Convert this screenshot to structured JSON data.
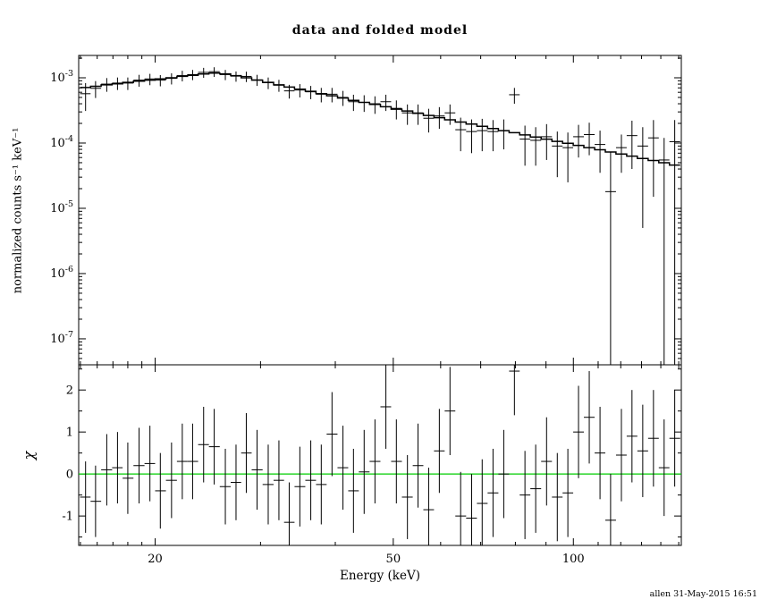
{
  "window": {
    "signature": "allen 31-May-2015 16:51"
  },
  "chart_data": {
    "type": "scatter",
    "subtype": "xspec spectrum with folded model (top) and chi residuals (bottom), error-bar crosses",
    "title": "data and folded model",
    "xlabel": "Energy (keV)",
    "xscale": "log",
    "xlim": [
      14.9,
      151.5
    ],
    "x_major_ticks": [
      20,
      50,
      100
    ],
    "x_minor_ticks": [
      15,
      16,
      17,
      18,
      19,
      30,
      40,
      60,
      70,
      80,
      90,
      110,
      120,
      130,
      140,
      150
    ],
    "panels": [
      {
        "name": "spectrum",
        "ylabel": "normalized counts s⁻¹ keV⁻¹",
        "yscale": "log",
        "ylim": [
          4e-08,
          0.0022
        ],
        "y_major_ticks": [
          0.001,
          0.0001,
          1e-05,
          1e-06,
          1e-07
        ]
      },
      {
        "name": "residuals",
        "ylabel": "χ",
        "yscale": "linear",
        "ylim": [
          -1.7,
          2.6
        ],
        "y_major_ticks": [
          -1,
          0,
          1,
          2
        ],
        "zero_line_color": "#00cc00"
      }
    ],
    "series": [
      {
        "name": "data",
        "style": "cross-error-bars",
        "color": "#000000"
      },
      {
        "name": "folded model",
        "style": "step-line",
        "color": "#000000"
      }
    ],
    "energy_kev": [
      15.3,
      15.9,
      16.6,
      17.3,
      18.0,
      18.8,
      19.6,
      20.4,
      21.3,
      22.2,
      23.1,
      24.1,
      25.1,
      26.2,
      27.3,
      28.4,
      29.6,
      30.9,
      32.2,
      33.5,
      34.9,
      36.4,
      37.9,
      39.5,
      41.2,
      42.9,
      44.7,
      46.6,
      48.6,
      50.6,
      52.8,
      55.0,
      57.3,
      59.7,
      62.2,
      64.8,
      67.6,
      70.4,
      73.4,
      76.5,
      79.7,
      83.0,
      86.5,
      90.2,
      94.0,
      97.9,
      102.0,
      106.3,
      110.8,
      115.4,
      120.3,
      125.3,
      130.6,
      136.1,
      141.8,
      147.7
    ],
    "counts": [
      0.00057,
      0.00069,
      0.0008,
      0.00083,
      0.00083,
      0.00092,
      0.00096,
      0.00092,
      0.00098,
      0.00108,
      0.00112,
      0.00121,
      0.00124,
      0.00112,
      0.00106,
      0.00105,
      0.00093,
      0.00084,
      0.00077,
      0.00063,
      0.00065,
      0.00061,
      0.00056,
      0.00056,
      0.0005,
      0.00043,
      0.00042,
      0.0004,
      0.00043,
      0.00034,
      0.00029,
      0.00029,
      0.00024,
      0.00026,
      0.00029,
      0.00016,
      0.00015,
      0.000155,
      0.00015,
      0.000155,
      0.00055,
      0.000115,
      0.00011,
      0.000125,
      9e-05,
      8.5e-05,
      0.000125,
      0.000135,
      9.5e-05,
      1.8e-05,
      8.5e-05,
      0.00013,
      9e-05,
      0.00012,
      5.5e-05,
      0.000105
    ],
    "counts_err": [
      0.00026,
      0.0002,
      0.00019,
      0.00018,
      0.00018,
      0.00019,
      0.00019,
      0.00018,
      0.00019,
      0.0002,
      0.0002,
      0.00021,
      0.00021,
      0.0002,
      0.00019,
      0.00019,
      0.00018,
      0.00017,
      0.00016,
      0.00015,
      0.00015,
      0.00014,
      0.00014,
      0.00014,
      0.00013,
      0.00012,
      0.00012,
      0.00012,
      0.00012,
      0.00011,
      0.0001,
      0.0001,
      9.5e-05,
      9.5e-05,
      0.0001,
      8.5e-05,
      8e-05,
      8e-05,
      7.5e-05,
      7.5e-05,
      0.00015,
      7e-05,
      6.5e-05,
      7e-05,
      6e-05,
      6e-05,
      6.5e-05,
      7e-05,
      6e-05,
      5.5e-05,
      5e-05,
      9e-05,
      8.5e-05,
      0.000105,
      6.5e-05,
      0.00012
    ],
    "model": [
      0.00071,
      0.00074,
      0.00078,
      0.00081,
      0.00085,
      0.00089,
      0.00092,
      0.00096,
      0.001,
      0.00105,
      0.00109,
      0.00114,
      0.00118,
      0.00115,
      0.00108,
      0.001,
      0.00092,
      0.00085,
      0.00078,
      0.00072,
      0.00067,
      0.00062,
      0.00057,
      0.00053,
      0.00049,
      0.00045,
      0.00042,
      0.00039,
      0.00036,
      0.00033,
      0.00031,
      0.000285,
      0.000265,
      0.000245,
      0.000227,
      0.00021,
      0.000195,
      0.000181,
      0.000167,
      0.000155,
      0.000144,
      0.000133,
      0.000124,
      0.000115,
      0.000106,
      9.9e-05,
      9.2e-05,
      8.5e-05,
      7.9e-05,
      7.3e-05,
      6.8e-05,
      6.3e-05,
      5.8e-05,
      5.4e-05,
      5e-05,
      4.6e-05
    ],
    "chi": [
      -0.55,
      -0.65,
      0.1,
      0.15,
      -0.1,
      0.2,
      0.25,
      -0.4,
      -0.15,
      0.3,
      0.3,
      0.7,
      0.65,
      -0.3,
      -0.2,
      0.5,
      0.1,
      -0.25,
      -0.15,
      -1.15,
      -0.3,
      -0.15,
      -0.25,
      0.95,
      0.15,
      -0.4,
      0.05,
      0.3,
      1.6,
      0.3,
      -0.55,
      0.2,
      -0.85,
      0.55,
      1.5,
      -1.0,
      -1.05,
      -0.7,
      -0.45,
      0.0,
      2.45,
      -0.5,
      -0.35,
      0.3,
      -0.55,
      -0.45,
      1.0,
      1.35,
      0.5,
      -1.1,
      0.45,
      0.9,
      0.55,
      0.85,
      0.15,
      0.85
    ],
    "chi_err": [
      0.85,
      0.85,
      0.85,
      0.85,
      0.85,
      0.9,
      0.9,
      0.9,
      0.9,
      0.9,
      0.9,
      0.9,
      0.9,
      0.9,
      0.9,
      0.95,
      0.95,
      0.95,
      0.95,
      0.95,
      0.95,
      0.95,
      0.95,
      1.0,
      1.0,
      1.0,
      1.0,
      1.0,
      1.0,
      1.0,
      1.0,
      1.0,
      1.0,
      1.0,
      1.05,
      1.05,
      1.05,
      1.05,
      1.05,
      1.05,
      1.05,
      1.05,
      1.05,
      1.05,
      1.05,
      1.05,
      1.1,
      1.1,
      1.1,
      1.1,
      1.1,
      1.1,
      1.1,
      1.15,
      1.15,
      1.15
    ]
  }
}
